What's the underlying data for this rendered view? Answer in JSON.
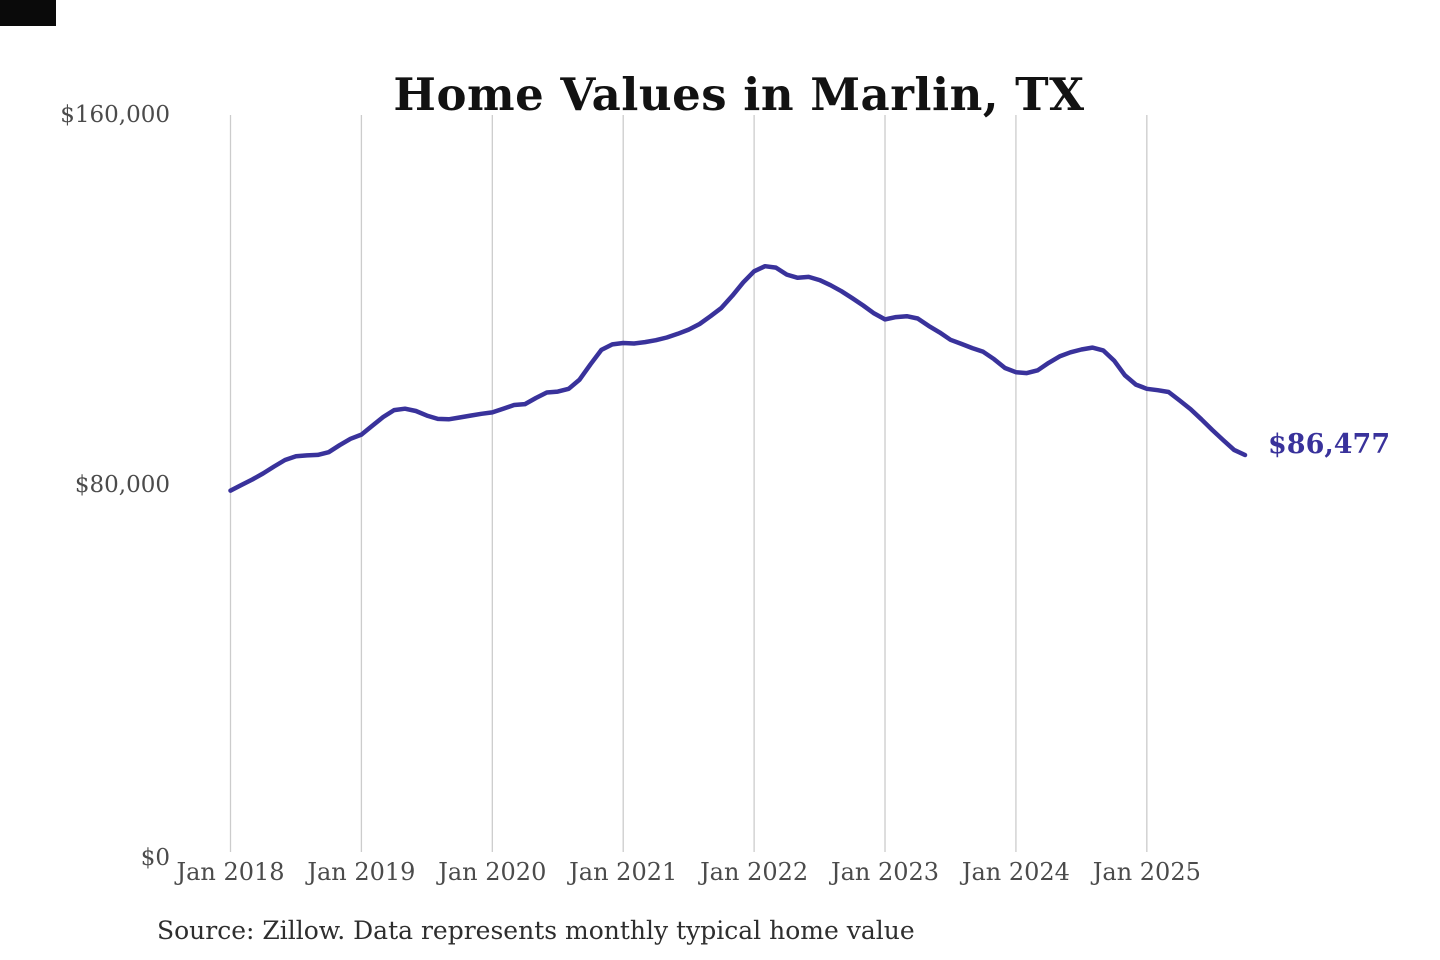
{
  "title": "Home Values in Marlin, TX",
  "source_note": "Source: Zillow. Data represents monthly typical home value",
  "chart_data": {
    "type": "line",
    "title": "Home Values in Marlin, TX",
    "xlabel": "",
    "ylabel": "",
    "ylim": [
      0,
      160000
    ],
    "grid": "vertical-year-gridlines-only",
    "legend_position": "none",
    "line_color": "#39329B",
    "gridline_color": "#cccccc",
    "end_label": "$86,477",
    "end_value": 86477,
    "y_tick_labels": [
      "$160,000",
      "$80,000",
      "$0"
    ],
    "y_tick_values": [
      160000,
      80000,
      0
    ],
    "x_tick_labels": [
      "Jan 2018",
      "Jan 2019",
      "Jan 2020",
      "Jan 2021",
      "Jan 2022",
      "Jan 2023",
      "Jan 2024",
      "Jan 2025"
    ],
    "series": [
      {
        "name": "Monthly typical home value",
        "x": [
          "2018-01",
          "2018-02",
          "2018-03",
          "2018-04",
          "2018-05",
          "2018-06",
          "2018-07",
          "2018-08",
          "2018-09",
          "2018-10",
          "2018-11",
          "2018-12",
          "2019-01",
          "2019-02",
          "2019-03",
          "2019-04",
          "2019-05",
          "2019-06",
          "2019-07",
          "2019-08",
          "2019-09",
          "2019-10",
          "2019-11",
          "2019-12",
          "2020-01",
          "2020-02",
          "2020-03",
          "2020-04",
          "2020-05",
          "2020-06",
          "2020-07",
          "2020-08",
          "2020-09",
          "2020-10",
          "2020-11",
          "2020-12",
          "2021-01",
          "2021-02",
          "2021-03",
          "2021-04",
          "2021-05",
          "2021-06",
          "2021-07",
          "2021-08",
          "2021-09",
          "2021-10",
          "2021-11",
          "2021-12",
          "2022-01",
          "2022-02",
          "2022-03",
          "2022-04",
          "2022-05",
          "2022-06",
          "2022-07",
          "2022-08",
          "2022-09",
          "2022-10",
          "2022-11",
          "2022-12",
          "2023-01",
          "2023-02",
          "2023-03",
          "2023-04",
          "2023-05",
          "2023-06",
          "2023-07",
          "2023-08",
          "2023-09",
          "2023-10",
          "2023-11",
          "2023-12",
          "2024-01",
          "2024-02",
          "2024-03",
          "2024-04",
          "2024-05",
          "2024-06",
          "2024-07",
          "2024-08",
          "2024-09",
          "2024-10",
          "2024-11",
          "2024-12",
          "2025-01",
          "2025-02",
          "2025-03",
          "2025-04",
          "2025-05",
          "2025-06",
          "2025-07",
          "2025-08",
          "2025-09",
          "2025-10"
        ],
        "values": [
          78800,
          80000,
          81200,
          82500,
          84000,
          85400,
          86200,
          86400,
          86500,
          87100,
          88600,
          90000,
          90900,
          92800,
          94700,
          96200,
          96500,
          96000,
          95000,
          94300,
          94200,
          94600,
          95000,
          95400,
          95700,
          96500,
          97300,
          97500,
          98800,
          100000,
          100200,
          100800,
          102800,
          106100,
          109200,
          110400,
          110700,
          110600,
          110900,
          111300,
          111900,
          112700,
          113600,
          114800,
          116500,
          118300,
          120900,
          123800,
          126200,
          127300,
          127000,
          125500,
          124800,
          125000,
          124300,
          123200,
          121900,
          120400,
          118800,
          117100,
          115800,
          116300,
          116500,
          116000,
          114400,
          113000,
          111400,
          110500,
          109600,
          108800,
          107200,
          105300,
          104400,
          104200,
          104800,
          106400,
          107800,
          108700,
          109300,
          109700,
          109100,
          106900,
          103700,
          101700,
          100800,
          100500,
          100100,
          98300,
          96400,
          94200,
          91900,
          89700,
          87600,
          86477
        ]
      }
    ]
  }
}
